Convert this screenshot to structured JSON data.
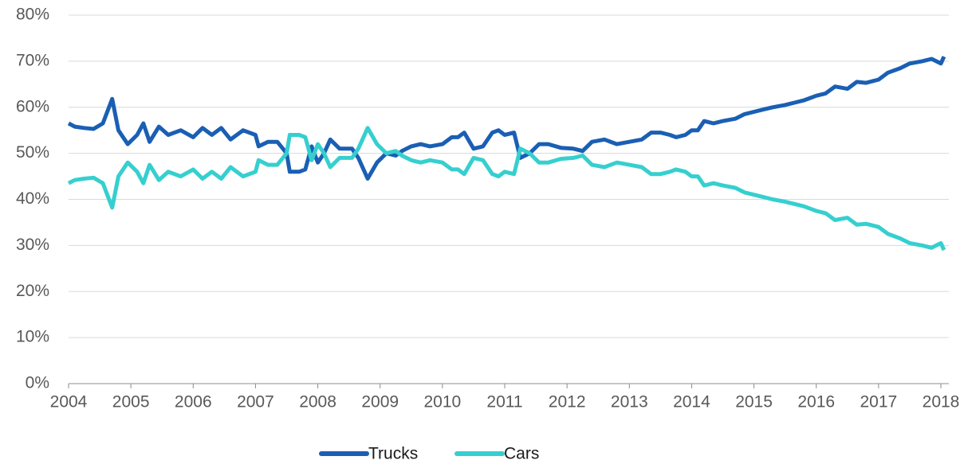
{
  "chart_data": {
    "type": "line",
    "x": [
      2004.0,
      2004.1,
      2004.25,
      2004.4,
      2004.55,
      2004.7,
      2004.8,
      2004.95,
      2005.1,
      2005.2,
      2005.3,
      2005.45,
      2005.6,
      2005.8,
      2006.0,
      2006.15,
      2006.3,
      2006.45,
      2006.6,
      2006.8,
      2007.0,
      2007.05,
      2007.2,
      2007.35,
      2007.5,
      2007.55,
      2007.7,
      2007.8,
      2007.9,
      2008.0,
      2008.1,
      2008.2,
      2008.35,
      2008.55,
      2008.65,
      2008.8,
      2008.95,
      2009.1,
      2009.25,
      2009.35,
      2009.5,
      2009.65,
      2009.8,
      2010.0,
      2010.15,
      2010.25,
      2010.35,
      2010.5,
      2010.65,
      2010.8,
      2010.9,
      2011.0,
      2011.15,
      2011.25,
      2011.4,
      2011.55,
      2011.7,
      2011.9,
      2012.1,
      2012.25,
      2012.4,
      2012.6,
      2012.8,
      2013.0,
      2013.2,
      2013.35,
      2013.5,
      2013.65,
      2013.75,
      2013.9,
      2014.0,
      2014.1,
      2014.2,
      2014.35,
      2014.5,
      2014.7,
      2014.85,
      2015.0,
      2015.15,
      2015.3,
      2015.5,
      2015.65,
      2015.8,
      2016.0,
      2016.15,
      2016.3,
      2016.5,
      2016.65,
      2016.8,
      2017.0,
      2017.15,
      2017.35,
      2017.5,
      2017.7,
      2017.85,
      2018.0,
      2018.05
    ],
    "series": [
      {
        "name": "Trucks",
        "color": "#1a5fb4",
        "values": [
          56.5,
          55.8,
          55.5,
          55.3,
          56.5,
          61.8,
          55,
          52,
          54,
          56.5,
          52.5,
          55.8,
          54,
          55,
          53.5,
          55.5,
          54,
          55.5,
          53,
          55,
          54,
          51.5,
          52.5,
          52.5,
          50,
          46,
          46,
          46.5,
          51.5,
          48,
          50,
          53,
          51,
          51,
          49,
          44.5,
          48,
          50,
          49.5,
          50.5,
          51.5,
          52,
          51.5,
          52,
          53.5,
          53.5,
          54.5,
          51,
          51.5,
          54.5,
          55,
          54,
          54.5,
          49,
          50,
          52,
          52,
          51.2,
          51,
          50.5,
          52.5,
          53,
          52,
          52.5,
          53,
          54.5,
          54.5,
          54,
          53.5,
          54,
          55,
          55,
          57,
          56.5,
          57,
          57.5,
          58.5,
          59,
          59.5,
          60,
          60.5,
          61,
          61.5,
          62.5,
          63,
          64.5,
          64,
          65.5,
          65.3,
          66,
          67.5,
          68.5,
          69.5,
          70,
          70.5,
          69.5,
          71
        ]
      },
      {
        "name": "Cars",
        "color": "#36cfcf",
        "values": [
          43.5,
          44.2,
          44.5,
          44.7,
          43.5,
          38.2,
          45,
          48,
          46,
          43.5,
          47.5,
          44.2,
          46,
          45,
          46.5,
          44.5,
          46,
          44.5,
          47,
          45,
          46,
          48.5,
          47.5,
          47.5,
          50,
          54,
          54,
          53.5,
          48.5,
          52,
          50,
          47,
          49,
          49,
          51,
          55.5,
          52,
          50,
          50.5,
          49.5,
          48.5,
          48,
          48.5,
          48,
          46.5,
          46.5,
          45.5,
          49,
          48.5,
          45.5,
          45,
          46,
          45.5,
          51,
          50,
          48,
          48,
          48.8,
          49,
          49.5,
          47.5,
          47,
          48,
          47.5,
          47,
          45.5,
          45.5,
          46,
          46.5,
          46,
          45,
          45,
          43,
          43.5,
          43,
          42.5,
          41.5,
          41,
          40.5,
          40,
          39.5,
          39,
          38.5,
          37.5,
          37,
          35.5,
          36,
          34.5,
          34.7,
          34,
          32.5,
          31.5,
          30.5,
          30,
          29.5,
          30.5,
          29
        ]
      }
    ],
    "xlim": [
      2004,
      2018
    ],
    "xticks": [
      2004,
      2005,
      2006,
      2007,
      2008,
      2009,
      2010,
      2011,
      2012,
      2013,
      2014,
      2015,
      2016,
      2017,
      2018
    ],
    "ylim": [
      0,
      80
    ],
    "yticks": [
      {
        "value": 0,
        "label": "0%"
      },
      {
        "value": 10,
        "label": "10%"
      },
      {
        "value": 20,
        "label": "20%"
      },
      {
        "value": 30,
        "label": "30%"
      },
      {
        "value": 40,
        "label": "40%"
      },
      {
        "value": 50,
        "label": "50%"
      },
      {
        "value": 60,
        "label": "60%"
      },
      {
        "value": 70,
        "label": "70%"
      },
      {
        "value": 80,
        "label": "80%"
      }
    ],
    "grid": true,
    "legend": "bottom"
  }
}
